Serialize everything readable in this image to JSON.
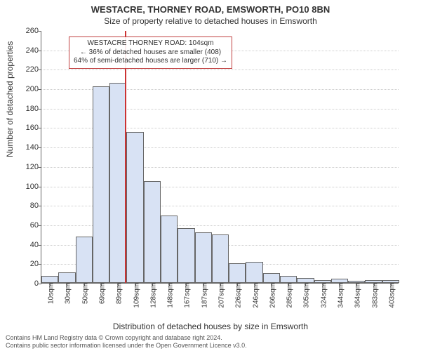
{
  "title": "WESTACRE, THORNEY ROAD, EMSWORTH, PO10 8BN",
  "subtitle": "Size of property relative to detached houses in Emsworth",
  "ylabel": "Number of detached properties",
  "xlabel": "Distribution of detached houses by size in Emsworth",
  "chart": {
    "type": "histogram",
    "ylim": [
      0,
      260
    ],
    "ytick_step": 20,
    "bar_fill": "#d8e2f4",
    "bar_border": "#666666",
    "grid_color": "#cccccc",
    "background_color": "#ffffff",
    "axis_color": "#666666",
    "marker_line_color": "#cc3333",
    "marker_line_x_index": 4.9,
    "title_fontsize": 13,
    "subtitle_fontsize": 12,
    "label_fontsize": 12,
    "tick_fontsize": 11,
    "categories": [
      "10sqm",
      "30sqm",
      "50sqm",
      "69sqm",
      "89sqm",
      "109sqm",
      "128sqm",
      "148sqm",
      "167sqm",
      "187sqm",
      "207sqm",
      "226sqm",
      "246sqm",
      "266sqm",
      "285sqm",
      "305sqm",
      "324sqm",
      "344sqm",
      "364sqm",
      "383sqm",
      "403sqm"
    ],
    "values": [
      7,
      11,
      48,
      202,
      206,
      155,
      105,
      69,
      56,
      52,
      50,
      20,
      22,
      10,
      7,
      5,
      3,
      4,
      2,
      3,
      3
    ]
  },
  "annotation": {
    "border_color": "#c04040",
    "line1": "WESTACRE THORNEY ROAD: 104sqm",
    "line2": "← 36% of detached houses are smaller (408)",
    "line3": "64% of semi-detached houses are larger (710) →"
  },
  "footnote": {
    "line1": "Contains HM Land Registry data © Crown copyright and database right 2024.",
    "line2": "Contains public sector information licensed under the Open Government Licence v3.0."
  }
}
